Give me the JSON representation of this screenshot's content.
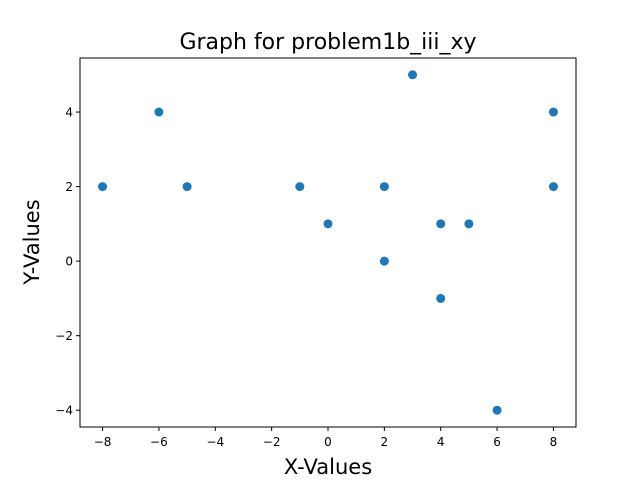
{
  "chart_data": {
    "type": "scatter",
    "title": "Graph for problem1b_iii_xy",
    "xlabel": "X-Values",
    "ylabel": "Y-Values",
    "xlim": [
      -8.8,
      8.8
    ],
    "ylim": [
      -4.45,
      5.45
    ],
    "xticks": [
      -8,
      -6,
      -4,
      -2,
      0,
      2,
      4,
      6,
      8
    ],
    "yticks": [
      -4,
      -2,
      0,
      2,
      4
    ],
    "xtick_labels": [
      "−8",
      "−6",
      "−4",
      "−2",
      "0",
      "2",
      "4",
      "6",
      "8"
    ],
    "ytick_labels": [
      "−4",
      "−2",
      "0",
      "2",
      "4"
    ],
    "grid": false,
    "marker_color": "#1f77b4",
    "points": [
      {
        "x": -8,
        "y": 2
      },
      {
        "x": -6,
        "y": 4
      },
      {
        "x": -5,
        "y": 2
      },
      {
        "x": -1,
        "y": 2
      },
      {
        "x": 0,
        "y": 1
      },
      {
        "x": 2,
        "y": 2
      },
      {
        "x": 2,
        "y": 0
      },
      {
        "x": 3,
        "y": 5
      },
      {
        "x": 4,
        "y": 1
      },
      {
        "x": 4,
        "y": -1
      },
      {
        "x": 5,
        "y": 1
      },
      {
        "x": 6,
        "y": -4
      },
      {
        "x": 8,
        "y": 4
      },
      {
        "x": 8,
        "y": 2
      }
    ]
  }
}
